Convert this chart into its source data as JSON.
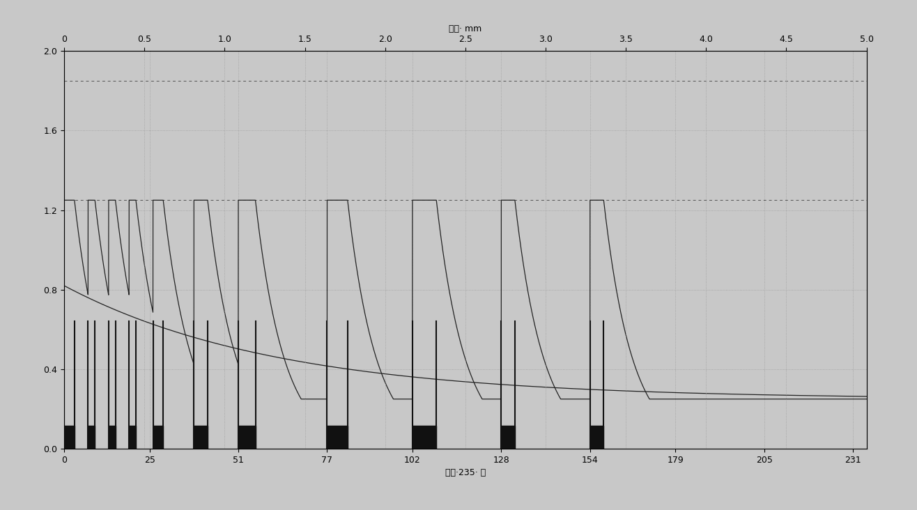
{
  "title": "",
  "ylabel": "",
  "ylim": [
    0,
    2.0
  ],
  "yticks": [
    0,
    0.4,
    0.8,
    1.2,
    1.6,
    2.0
  ],
  "xlim_depth": [
    0,
    5.0
  ],
  "xlim_time": [
    0,
    235
  ],
  "xticks_depth": [
    0,
    0.5,
    1.0,
    1.5,
    2.0,
    2.5,
    3.0,
    3.5,
    4.0,
    4.5,
    5.0
  ],
  "xticks_time": [
    0,
    25,
    51,
    77,
    102,
    128,
    154,
    179,
    205,
    231
  ],
  "xlabel_depth": "深度· mm",
  "xlabel_time": "时间·235· 分",
  "boost_times": [
    0,
    7,
    13,
    19,
    26,
    38,
    51,
    77,
    102,
    128,
    154
  ],
  "boost_durations": [
    3,
    2,
    2,
    2,
    3,
    4,
    5,
    6,
    7,
    4,
    4
  ],
  "hline1_y": 1.85,
  "hline2_y": 1.25,
  "peak_y": 1.25,
  "min_y_cp": 0.82,
  "surface_start": 0.82,
  "surface_end": 0.25,
  "surface_decay": 0.016,
  "decay_rate": 0.12,
  "background_color": "#c8c8c8",
  "line_color": "#222222",
  "grid_color": "#999999",
  "vline_color": "#111111",
  "vline_ymax": 0.32
}
